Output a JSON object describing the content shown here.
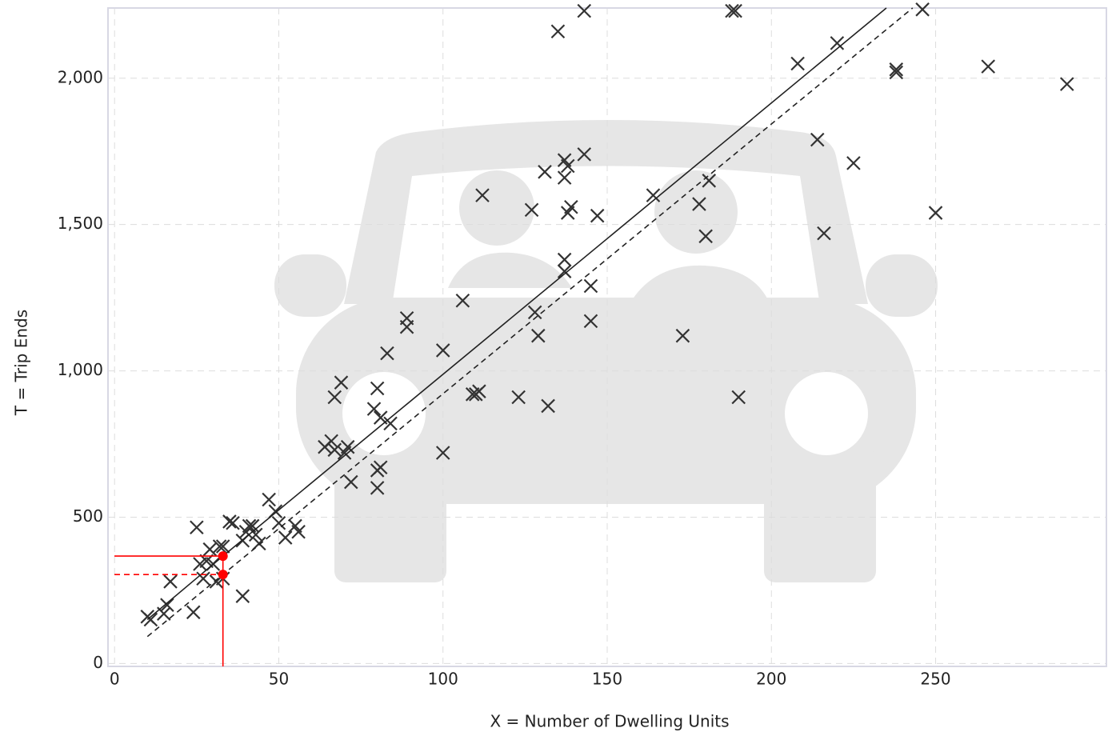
{
  "chart_data": {
    "type": "scatter",
    "x_label": "X = Number of Dwelling Units",
    "y_label": "T = Trip Ends",
    "xlim": [
      -2,
      302
    ],
    "ylim": [
      -10,
      2240
    ],
    "xticks": [
      0,
      50,
      100,
      150,
      200,
      250
    ],
    "yticks": [
      0,
      500,
      {
        "value": 1000,
        "label": "1,000"
      },
      {
        "value": 1500,
        "label": "1,500"
      },
      {
        "value": 2000,
        "label": "2,000"
      }
    ],
    "grid": true,
    "points": {
      "color": "#333333",
      "x": [
        10,
        11,
        15,
        16,
        17,
        24,
        25,
        26,
        27,
        28,
        29,
        30,
        31,
        32,
        33,
        33,
        35,
        36,
        39,
        39,
        40,
        41,
        42,
        43,
        44,
        47,
        49,
        50,
        52,
        55,
        56,
        64,
        66,
        67,
        67,
        69,
        70,
        71,
        72,
        79,
        80,
        80,
        80,
        81,
        81,
        83,
        84,
        89,
        89,
        100,
        100,
        106,
        109,
        110,
        111,
        112,
        123,
        127,
        128,
        129,
        131,
        132,
        135,
        137,
        137,
        137,
        137,
        138,
        138,
        139,
        143,
        143,
        145,
        145,
        147,
        164,
        173,
        178,
        180,
        181,
        188,
        189,
        190,
        208,
        214,
        216,
        220,
        225,
        238,
        238,
        246,
        250,
        266,
        290
      ],
      "y": [
        160,
        150,
        170,
        200,
        280,
        175,
        465,
        340,
        290,
        350,
        390,
        340,
        280,
        400,
        400,
        290,
        485,
        480,
        420,
        230,
        450,
        470,
        470,
        440,
        410,
        560,
        520,
        480,
        430,
        470,
        450,
        740,
        760,
        910,
        730,
        960,
        720,
        740,
        620,
        870,
        940,
        660,
        600,
        670,
        840,
        1060,
        820,
        1180,
        1150,
        1070,
        720,
        1240,
        920,
        920,
        930,
        1600,
        910,
        1550,
        1200,
        1120,
        1680,
        880,
        2160,
        1340,
        1380,
        1660,
        1720,
        1700,
        1540,
        1560,
        1740,
        2230,
        1290,
        1170,
        1530,
        1600,
        1120,
        1570,
        1460,
        1650,
        2230,
        2230,
        910,
        2050,
        1790,
        1470,
        2120,
        1710,
        2030,
        2020,
        2235,
        1540,
        2040,
        1980
      ]
    },
    "lines": [
      {
        "style": "solid",
        "color": "#222222",
        "x": [
          10,
          33,
          235
        ],
        "y": [
          150,
          367,
          2240
        ]
      },
      {
        "style": "dashed",
        "color": "#222222",
        "x": [
          10,
          243
        ],
        "y": [
          92,
          2240
        ]
      }
    ],
    "marker": {
      "color": "#ff0000",
      "x": 33,
      "y": [
        367,
        304
      ]
    }
  }
}
